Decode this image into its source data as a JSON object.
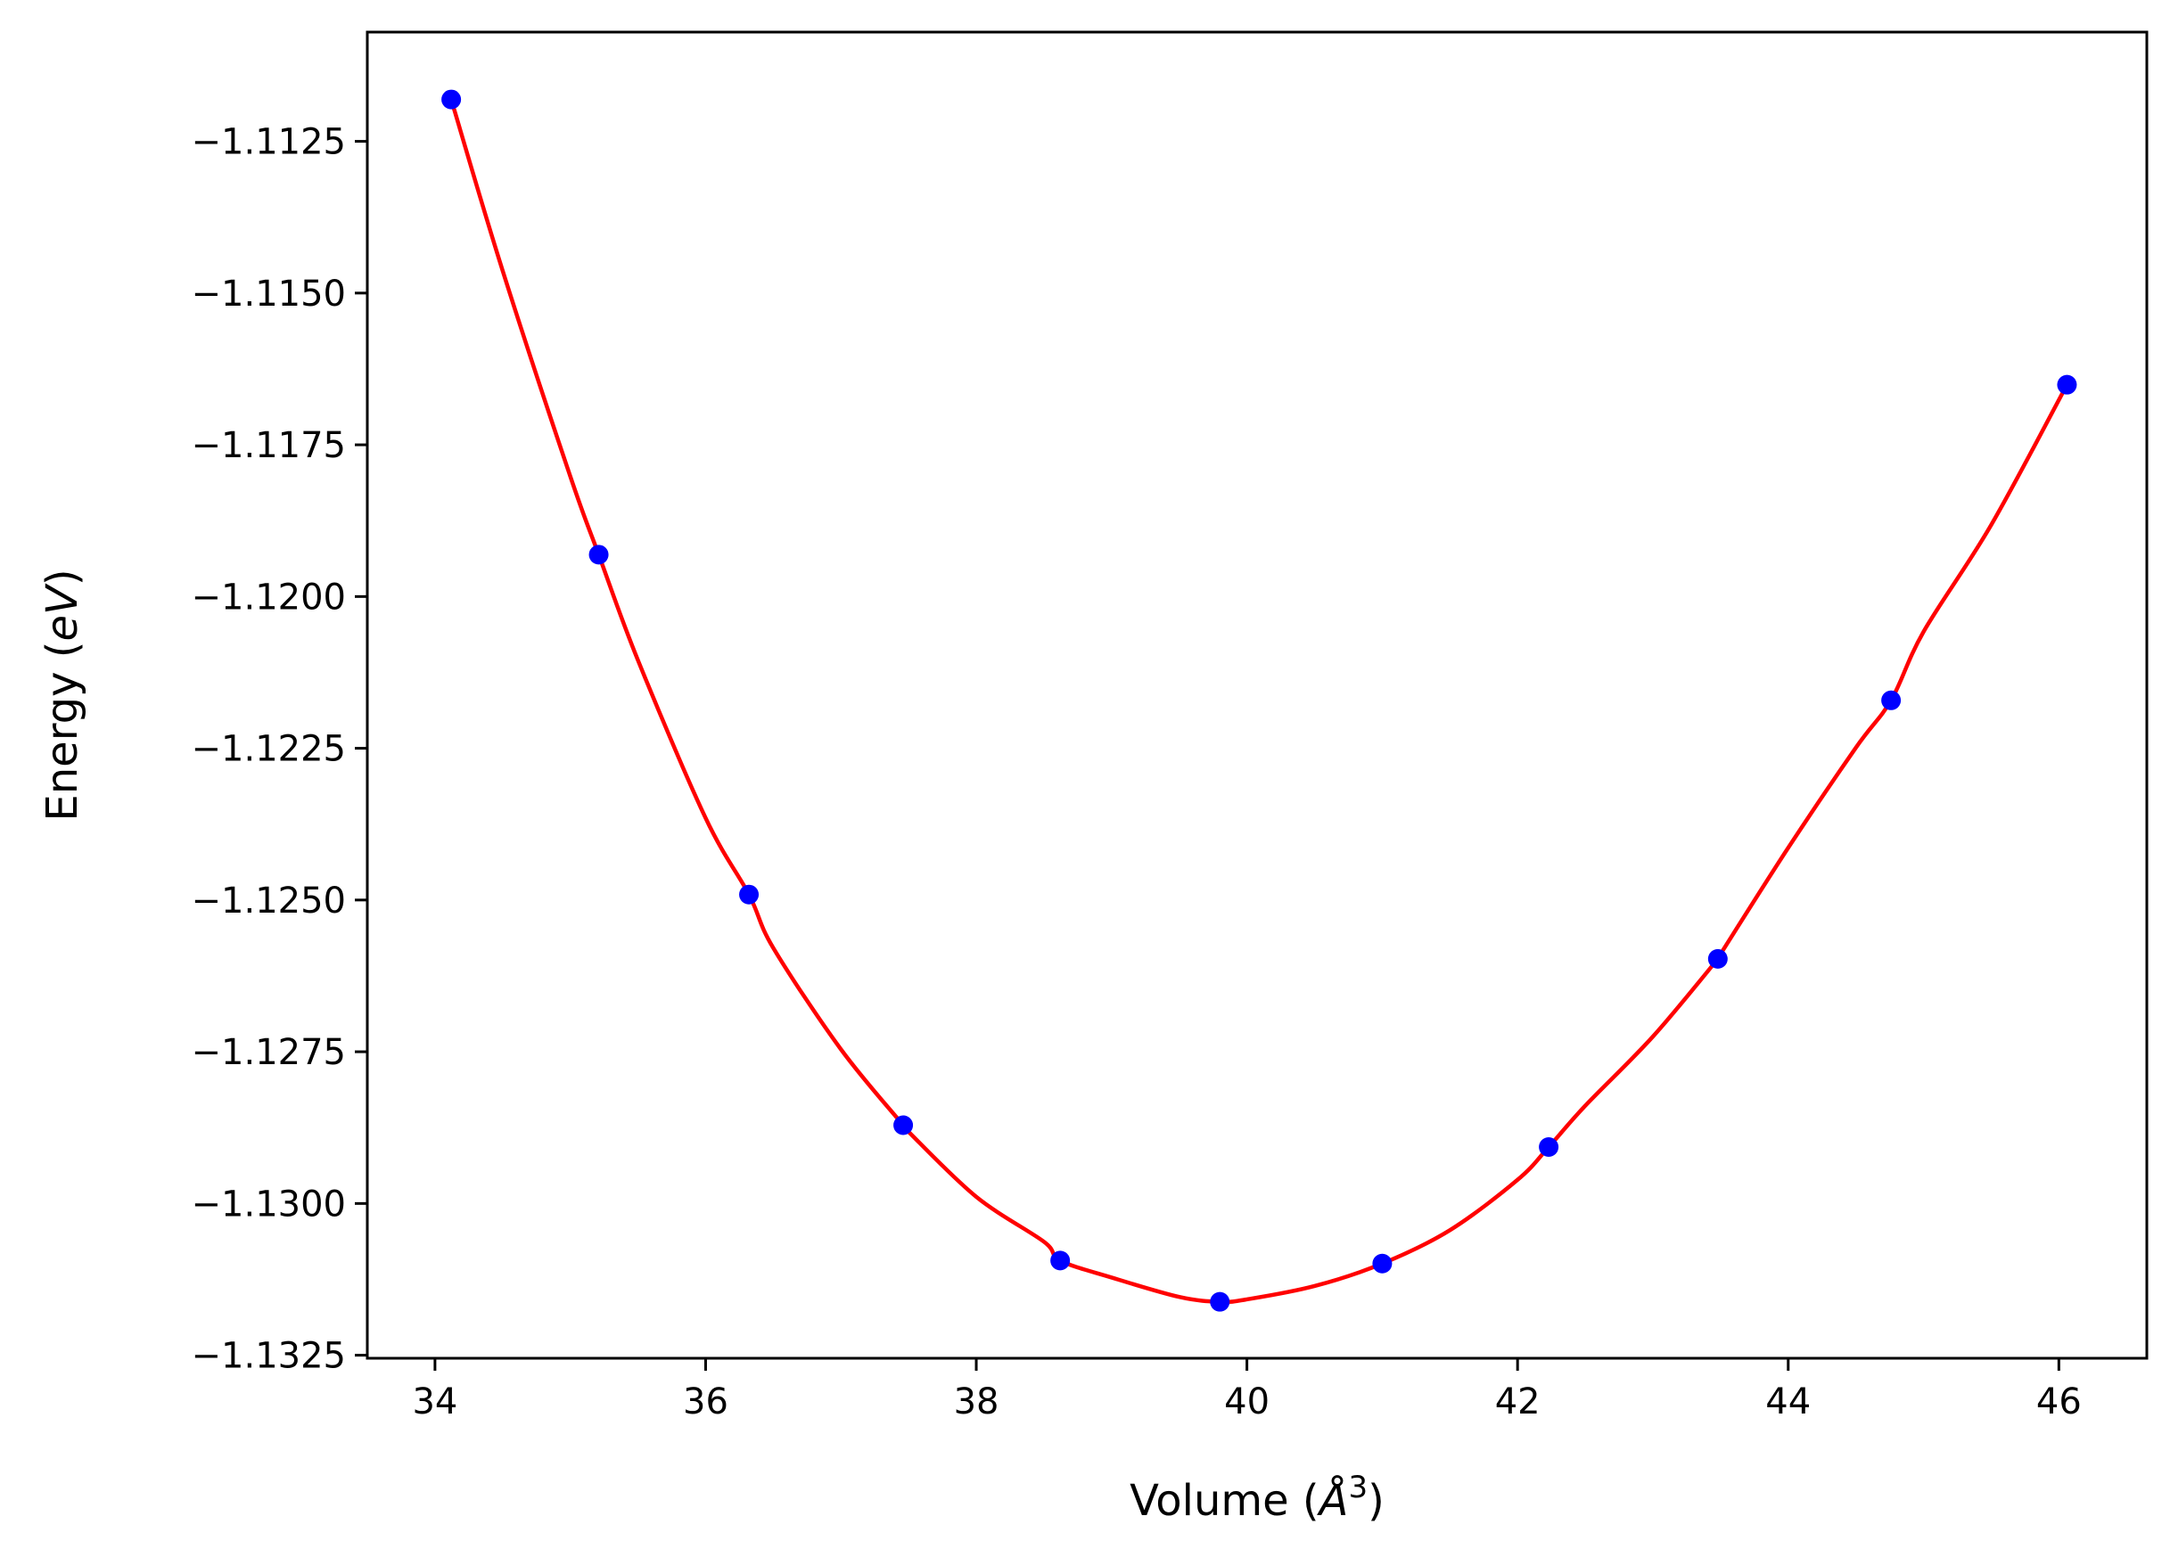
{
  "chart_data": {
    "type": "scatter",
    "title": "",
    "xlabel": "Volume (Å³)",
    "ylabel": "Energy (eV)",
    "xlabel_parts": {
      "before": "Volume (",
      "symbol": "Å",
      "sup": "3",
      "after": ")"
    },
    "ylabel_parts": {
      "before": "Energy (",
      "unit": "eV",
      "after": ")"
    },
    "xlim": [
      33.5,
      46.65
    ],
    "ylim": [
      -1.13255,
      -1.1107
    ],
    "xticks": [
      34,
      36,
      38,
      40,
      42,
      44,
      46
    ],
    "xtick_labels": [
      "34",
      "36",
      "38",
      "40",
      "42",
      "44",
      "46"
    ],
    "yticks": [
      -1.1125,
      -1.115,
      -1.1175,
      -1.12,
      -1.1225,
      -1.125,
      -1.1275,
      -1.13,
      -1.1325
    ],
    "ytick_labels": [
      "−1.1125",
      "−1.1150",
      "−1.1175",
      "−1.1200",
      "−1.1225",
      "−1.1250",
      "−1.1275",
      "−1.1300",
      "−1.1325"
    ],
    "grid": false,
    "legend": "none",
    "series": [
      {
        "kind": "points",
        "color": "#0000ff",
        "x": [
          34.12,
          35.21,
          36.32,
          37.46,
          38.62,
          39.8,
          41.0,
          42.23,
          43.48,
          44.76,
          46.06
        ],
        "y": [
          -1.11181,
          -1.11931,
          -1.12491,
          -1.12871,
          -1.13094,
          -1.13162,
          -1.13099,
          -1.12907,
          -1.12597,
          -1.12171,
          -1.11651
        ]
      },
      {
        "kind": "fit-curve",
        "color": "#ff0000",
        "x": [
          34.12,
          34.5,
          35.0,
          35.21,
          35.5,
          36.0,
          36.32,
          36.5,
          37.0,
          37.46,
          37.5,
          38.0,
          38.5,
          38.62,
          39.0,
          39.5,
          39.8,
          40.0,
          40.5,
          41.0,
          41.5,
          42.0,
          42.23,
          42.5,
          43.0,
          43.48,
          43.5,
          44.0,
          44.5,
          44.76,
          45.0,
          45.5,
          46.06
        ],
        "y": [
          -1.11181,
          -1.11463,
          -1.11802,
          -1.11931,
          -1.12105,
          -1.12365,
          -1.12491,
          -1.12579,
          -1.12746,
          -1.12871,
          -1.12882,
          -1.12989,
          -1.13063,
          -1.13094,
          -1.13122,
          -1.13154,
          -1.13162,
          -1.13158,
          -1.13136,
          -1.13099,
          -1.13044,
          -1.12961,
          -1.12907,
          -1.12839,
          -1.12725,
          -1.12597,
          -1.12589,
          -1.12414,
          -1.12249,
          -1.12171,
          -1.12058,
          -1.11882,
          -1.11651
        ]
      }
    ]
  }
}
